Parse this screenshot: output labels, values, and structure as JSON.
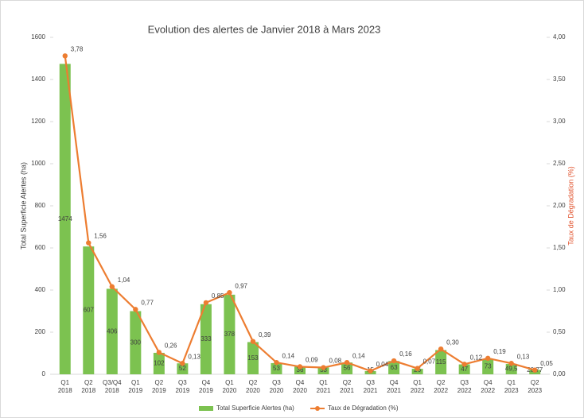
{
  "chart_data": {
    "type": "bar_line",
    "title": "Evolution des alertes de Janvier 2018 à Mars 2023",
    "y_label": "Total Superficie Alertes (ha)",
    "y2_label": "Taux de Dégradation (%)",
    "categories": [
      [
        "Q1",
        "2018"
      ],
      [
        "Q2",
        "2018"
      ],
      [
        "Q3/Q4",
        "2018"
      ],
      [
        "Q1",
        "2019"
      ],
      [
        "Q2",
        "2019"
      ],
      [
        "Q3",
        "2019"
      ],
      [
        "Q4",
        "2019"
      ],
      [
        "Q1",
        "2020"
      ],
      [
        "Q2",
        "2020"
      ],
      [
        "Q3",
        "2020"
      ],
      [
        "Q4",
        "2020"
      ],
      [
        "Q1",
        "2021"
      ],
      [
        "Q2",
        "2021"
      ],
      [
        "Q3",
        "2021"
      ],
      [
        "Q4",
        "2021"
      ],
      [
        "Q1",
        "2022"
      ],
      [
        "Q2",
        "2022"
      ],
      [
        "Q3",
        "2022"
      ],
      [
        "Q4",
        "2022"
      ],
      [
        "Q1",
        "2023"
      ],
      [
        "Q2",
        "2023"
      ]
    ],
    "series": [
      {
        "name": "Total Superficie Alertes (ha)",
        "type": "bar",
        "color": "#7cc250",
        "values": [
          1474,
          607,
          406,
          300,
          102,
          52,
          333,
          378,
          153,
          53,
          36,
          33,
          56,
          15,
          63,
          26,
          115,
          47,
          73,
          49.5,
          20.77
        ],
        "value_labels": [
          "1474",
          "607",
          "406",
          "300",
          "102",
          "52",
          "333",
          "378",
          "153",
          "53",
          "36",
          "33",
          "56",
          "15",
          "63",
          "26",
          "115",
          "47",
          "73",
          "49,5",
          "20,77"
        ]
      },
      {
        "name": "Taux de Dégradation (%)",
        "type": "line",
        "axis": "y2",
        "color": "#ed7d31",
        "values": [
          3.78,
          1.56,
          1.04,
          0.77,
          0.26,
          0.13,
          0.85,
          0.97,
          0.39,
          0.14,
          0.09,
          0.08,
          0.14,
          0.04,
          0.16,
          0.07,
          0.3,
          0.12,
          0.19,
          0.13,
          0.05
        ],
        "value_labels": [
          "3,78",
          "1,56",
          "1,04",
          "0,77",
          "0,26",
          "0,13",
          "0,85",
          "0,97",
          "0,39",
          "0,14",
          "0,09",
          "0,08",
          "0,14",
          "0,04",
          "0,16",
          "0,07",
          "0,30",
          "0,12",
          "0,19",
          "0,13",
          "0,05"
        ]
      }
    ],
    "ylim": [
      0,
      1600
    ],
    "yticks": [
      0,
      200,
      400,
      600,
      800,
      1000,
      1200,
      1400,
      1600
    ],
    "y2lim": [
      0,
      4
    ],
    "y2ticks": [
      {
        "value": 0,
        "label": "0,00"
      },
      {
        "value": 0.5,
        "label": "0,50"
      },
      {
        "value": 1,
        "label": "1,00"
      },
      {
        "value": 1.5,
        "label": "1,50"
      },
      {
        "value": 2,
        "label": "2,00"
      },
      {
        "value": 2.5,
        "label": "2,50"
      },
      {
        "value": 3,
        "label": "3,00"
      },
      {
        "value": 3.5,
        "label": "3,50"
      },
      {
        "value": 4,
        "label": "4,00"
      }
    ],
    "legend": "bottom"
  }
}
